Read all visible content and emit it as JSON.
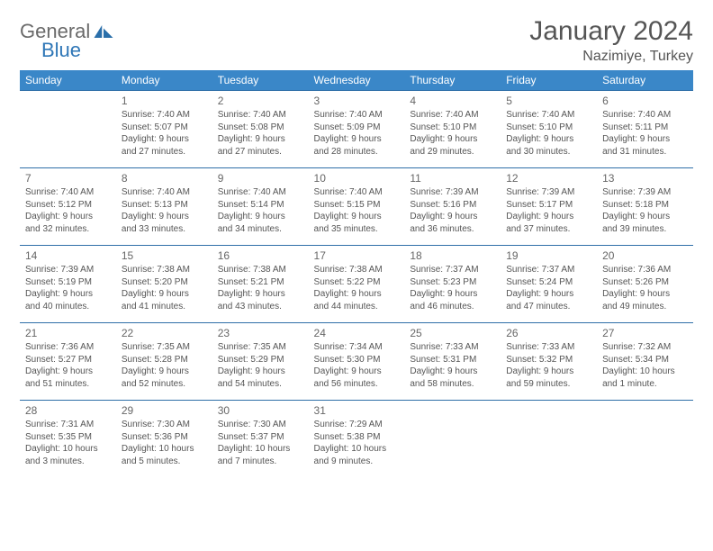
{
  "brand": {
    "word1": "General",
    "word2": "Blue"
  },
  "title": "January 2024",
  "location": "Nazimiye, Turkey",
  "colors": {
    "header_bg": "#3a87c8",
    "header_text": "#ffffff",
    "row_border": "#2f6fa8",
    "body_text": "#555555",
    "brand_gray": "#6a6a6a",
    "brand_blue": "#2f77b7",
    "page_bg": "#ffffff"
  },
  "weekdays": [
    "Sunday",
    "Monday",
    "Tuesday",
    "Wednesday",
    "Thursday",
    "Friday",
    "Saturday"
  ],
  "weeks": [
    [
      null,
      {
        "n": "1",
        "sr": "Sunrise: 7:40 AM",
        "ss": "Sunset: 5:07 PM",
        "d1": "Daylight: 9 hours",
        "d2": "and 27 minutes."
      },
      {
        "n": "2",
        "sr": "Sunrise: 7:40 AM",
        "ss": "Sunset: 5:08 PM",
        "d1": "Daylight: 9 hours",
        "d2": "and 27 minutes."
      },
      {
        "n": "3",
        "sr": "Sunrise: 7:40 AM",
        "ss": "Sunset: 5:09 PM",
        "d1": "Daylight: 9 hours",
        "d2": "and 28 minutes."
      },
      {
        "n": "4",
        "sr": "Sunrise: 7:40 AM",
        "ss": "Sunset: 5:10 PM",
        "d1": "Daylight: 9 hours",
        "d2": "and 29 minutes."
      },
      {
        "n": "5",
        "sr": "Sunrise: 7:40 AM",
        "ss": "Sunset: 5:10 PM",
        "d1": "Daylight: 9 hours",
        "d2": "and 30 minutes."
      },
      {
        "n": "6",
        "sr": "Sunrise: 7:40 AM",
        "ss": "Sunset: 5:11 PM",
        "d1": "Daylight: 9 hours",
        "d2": "and 31 minutes."
      }
    ],
    [
      {
        "n": "7",
        "sr": "Sunrise: 7:40 AM",
        "ss": "Sunset: 5:12 PM",
        "d1": "Daylight: 9 hours",
        "d2": "and 32 minutes."
      },
      {
        "n": "8",
        "sr": "Sunrise: 7:40 AM",
        "ss": "Sunset: 5:13 PM",
        "d1": "Daylight: 9 hours",
        "d2": "and 33 minutes."
      },
      {
        "n": "9",
        "sr": "Sunrise: 7:40 AM",
        "ss": "Sunset: 5:14 PM",
        "d1": "Daylight: 9 hours",
        "d2": "and 34 minutes."
      },
      {
        "n": "10",
        "sr": "Sunrise: 7:40 AM",
        "ss": "Sunset: 5:15 PM",
        "d1": "Daylight: 9 hours",
        "d2": "and 35 minutes."
      },
      {
        "n": "11",
        "sr": "Sunrise: 7:39 AM",
        "ss": "Sunset: 5:16 PM",
        "d1": "Daylight: 9 hours",
        "d2": "and 36 minutes."
      },
      {
        "n": "12",
        "sr": "Sunrise: 7:39 AM",
        "ss": "Sunset: 5:17 PM",
        "d1": "Daylight: 9 hours",
        "d2": "and 37 minutes."
      },
      {
        "n": "13",
        "sr": "Sunrise: 7:39 AM",
        "ss": "Sunset: 5:18 PM",
        "d1": "Daylight: 9 hours",
        "d2": "and 39 minutes."
      }
    ],
    [
      {
        "n": "14",
        "sr": "Sunrise: 7:39 AM",
        "ss": "Sunset: 5:19 PM",
        "d1": "Daylight: 9 hours",
        "d2": "and 40 minutes."
      },
      {
        "n": "15",
        "sr": "Sunrise: 7:38 AM",
        "ss": "Sunset: 5:20 PM",
        "d1": "Daylight: 9 hours",
        "d2": "and 41 minutes."
      },
      {
        "n": "16",
        "sr": "Sunrise: 7:38 AM",
        "ss": "Sunset: 5:21 PM",
        "d1": "Daylight: 9 hours",
        "d2": "and 43 minutes."
      },
      {
        "n": "17",
        "sr": "Sunrise: 7:38 AM",
        "ss": "Sunset: 5:22 PM",
        "d1": "Daylight: 9 hours",
        "d2": "and 44 minutes."
      },
      {
        "n": "18",
        "sr": "Sunrise: 7:37 AM",
        "ss": "Sunset: 5:23 PM",
        "d1": "Daylight: 9 hours",
        "d2": "and 46 minutes."
      },
      {
        "n": "19",
        "sr": "Sunrise: 7:37 AM",
        "ss": "Sunset: 5:24 PM",
        "d1": "Daylight: 9 hours",
        "d2": "and 47 minutes."
      },
      {
        "n": "20",
        "sr": "Sunrise: 7:36 AM",
        "ss": "Sunset: 5:26 PM",
        "d1": "Daylight: 9 hours",
        "d2": "and 49 minutes."
      }
    ],
    [
      {
        "n": "21",
        "sr": "Sunrise: 7:36 AM",
        "ss": "Sunset: 5:27 PM",
        "d1": "Daylight: 9 hours",
        "d2": "and 51 minutes."
      },
      {
        "n": "22",
        "sr": "Sunrise: 7:35 AM",
        "ss": "Sunset: 5:28 PM",
        "d1": "Daylight: 9 hours",
        "d2": "and 52 minutes."
      },
      {
        "n": "23",
        "sr": "Sunrise: 7:35 AM",
        "ss": "Sunset: 5:29 PM",
        "d1": "Daylight: 9 hours",
        "d2": "and 54 minutes."
      },
      {
        "n": "24",
        "sr": "Sunrise: 7:34 AM",
        "ss": "Sunset: 5:30 PM",
        "d1": "Daylight: 9 hours",
        "d2": "and 56 minutes."
      },
      {
        "n": "25",
        "sr": "Sunrise: 7:33 AM",
        "ss": "Sunset: 5:31 PM",
        "d1": "Daylight: 9 hours",
        "d2": "and 58 minutes."
      },
      {
        "n": "26",
        "sr": "Sunrise: 7:33 AM",
        "ss": "Sunset: 5:32 PM",
        "d1": "Daylight: 9 hours",
        "d2": "and 59 minutes."
      },
      {
        "n": "27",
        "sr": "Sunrise: 7:32 AM",
        "ss": "Sunset: 5:34 PM",
        "d1": "Daylight: 10 hours",
        "d2": "and 1 minute."
      }
    ],
    [
      {
        "n": "28",
        "sr": "Sunrise: 7:31 AM",
        "ss": "Sunset: 5:35 PM",
        "d1": "Daylight: 10 hours",
        "d2": "and 3 minutes."
      },
      {
        "n": "29",
        "sr": "Sunrise: 7:30 AM",
        "ss": "Sunset: 5:36 PM",
        "d1": "Daylight: 10 hours",
        "d2": "and 5 minutes."
      },
      {
        "n": "30",
        "sr": "Sunrise: 7:30 AM",
        "ss": "Sunset: 5:37 PM",
        "d1": "Daylight: 10 hours",
        "d2": "and 7 minutes."
      },
      {
        "n": "31",
        "sr": "Sunrise: 7:29 AM",
        "ss": "Sunset: 5:38 PM",
        "d1": "Daylight: 10 hours",
        "d2": "and 9 minutes."
      },
      null,
      null,
      null
    ]
  ]
}
